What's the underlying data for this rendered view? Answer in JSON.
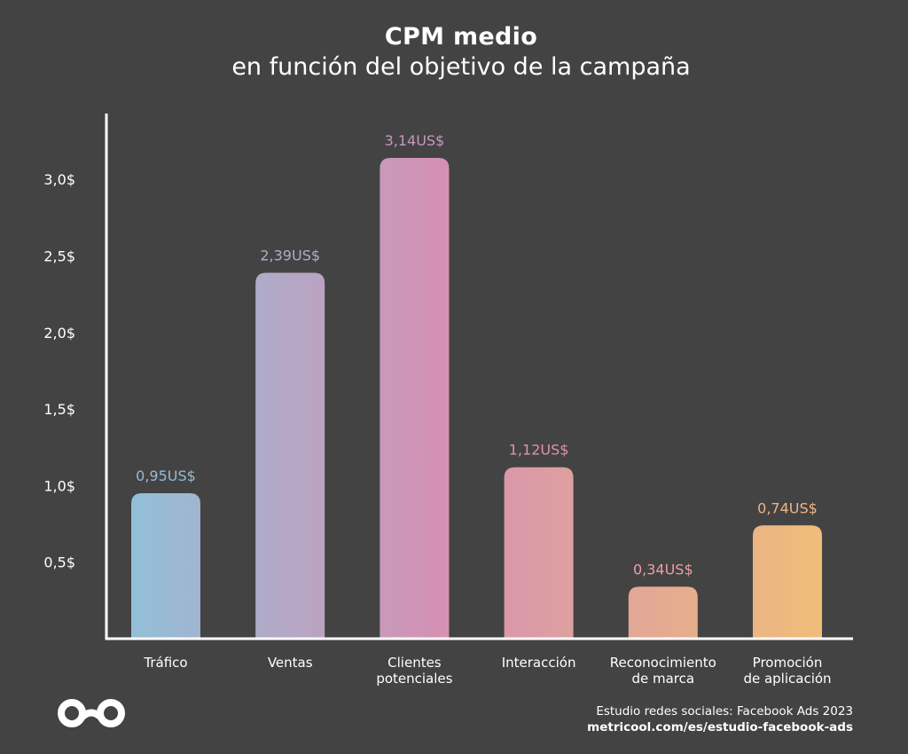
{
  "header": {
    "title": "CPM medio",
    "subtitle": "en función del objetivo de la campaña"
  },
  "chart_data": {
    "type": "bar",
    "title": "CPM medio",
    "subtitle": "en función del objetivo de la campaña",
    "xlabel": "",
    "ylabel": "",
    "ylim": [
      0,
      3.25
    ],
    "yticks": [
      0.5,
      1.0,
      1.5,
      2.0,
      2.5,
      3.0
    ],
    "ytick_labels": [
      "0,5$",
      "1,0$",
      "1,5$",
      "2,0$",
      "2,5$",
      "3,0$"
    ],
    "grid": false,
    "legend": "none",
    "categories": [
      [
        "Tráfico"
      ],
      [
        "Ventas"
      ],
      [
        "Clientes",
        "potenciales"
      ],
      [
        "Interacción"
      ],
      [
        "Reconocimiento",
        "de marca"
      ],
      [
        "Promoción",
        "de aplicación"
      ]
    ],
    "values": [
      0.95,
      2.39,
      3.14,
      1.12,
      0.34,
      0.74
    ],
    "data_labels": [
      "0,95US$",
      "2,39US$",
      "3,14US$",
      "1,12US$",
      "0,34US$",
      "0,74US$"
    ],
    "colors": [
      "#95bbd4",
      "#a9aecb",
      "#c897bf",
      "#e093ad",
      "#eb9fa6",
      "#edb582"
    ],
    "gradient": {
      "start": "#92bfd8",
      "mid": "#d590b3",
      "end": "#f0bd7a"
    }
  },
  "footer": {
    "source": "Estudio redes sociales: Facebook Ads 2023",
    "url": "metricool.com/es/estudio-facebook-ads",
    "logo_icon": "metricool-logo-icon"
  },
  "theme": {
    "background": "#434343",
    "axis_color": "#ffffff",
    "text_color": "#ffffff"
  }
}
